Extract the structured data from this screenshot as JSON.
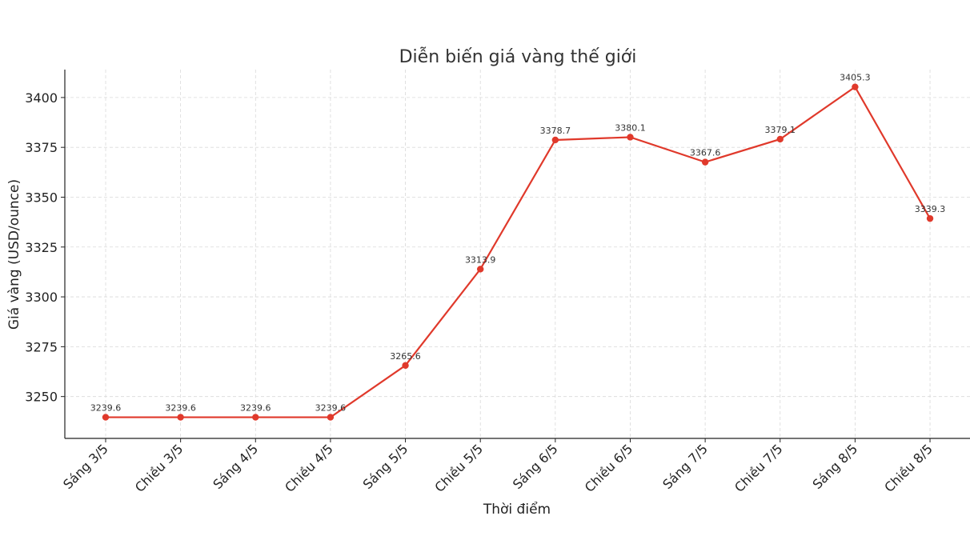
{
  "chart_data": {
    "type": "line",
    "title": "Diễn biến giá vàng thế giới",
    "xlabel": "Thời điểm",
    "ylabel": "Giá vàng (USD/ounce)",
    "categories": [
      "Sáng 3/5",
      "Chiều 3/5",
      "Sáng 4/5",
      "Chiều 4/5",
      "Sáng 5/5",
      "Chiều 5/5",
      "Sáng 6/5",
      "Chiều 6/5",
      "Sáng 7/5",
      "Chiều 7/5",
      "Sáng 8/5",
      "Chiều 8/5"
    ],
    "values": [
      3239.6,
      3239.6,
      3239.6,
      3239.6,
      3265.6,
      3313.9,
      3378.7,
      3380.1,
      3367.6,
      3379.1,
      3405.3,
      3339.3
    ],
    "data_labels": [
      "3239.6",
      "3239.6",
      "3239.6",
      "3239.6",
      "3265.6",
      "3313.9",
      "3378.7",
      "3380.1",
      "3367.6",
      "3379.1",
      "3405.3",
      "3339.3"
    ],
    "yticks": [
      "3250",
      "3275",
      "3300",
      "3325",
      "3350",
      "3375",
      "3400"
    ],
    "ylim": [
      3229,
      3414
    ],
    "grid": true,
    "legend": false,
    "line_color": "#e0392b",
    "marker_color": "#e0392b"
  }
}
